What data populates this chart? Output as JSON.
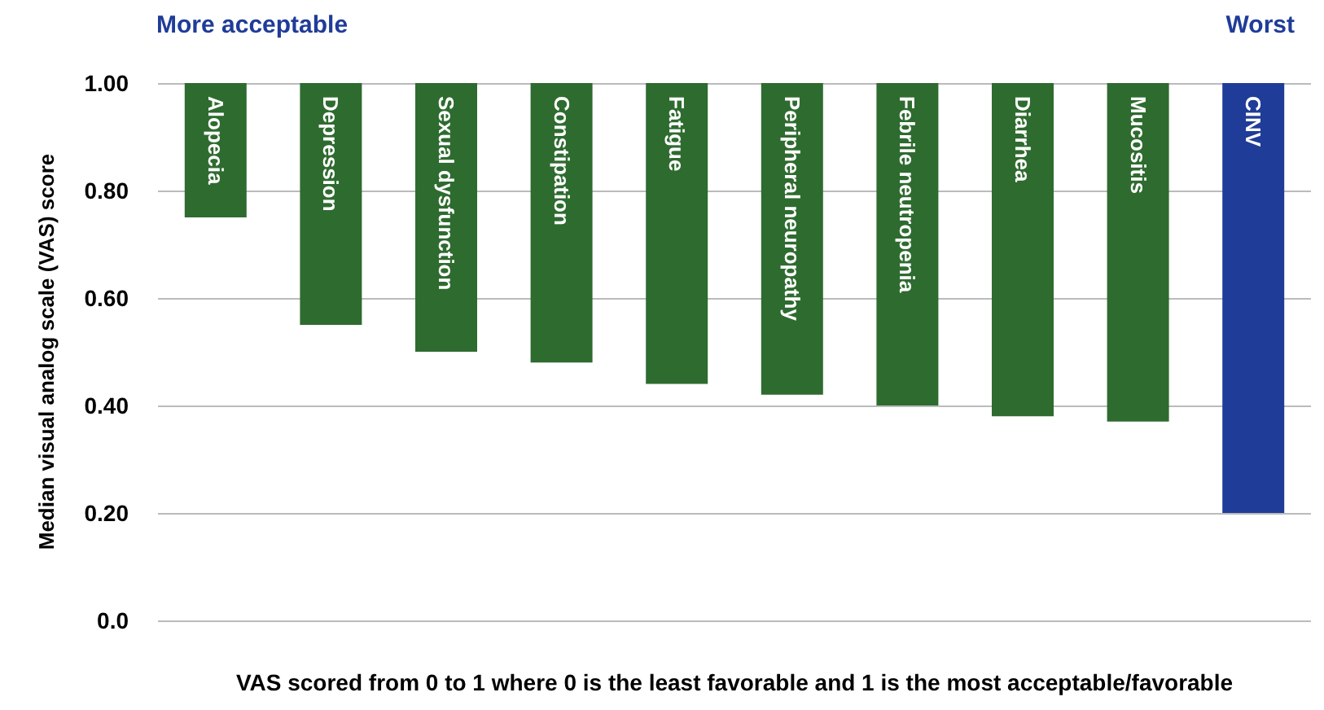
{
  "chart_data": {
    "type": "bar",
    "ylabel": "Median visual analog scale (VAS) score",
    "xlabel": "VAS scored from 0 to 1 where 0 is the least favorable and 1 is the most acceptable/favorable",
    "annotations": [
      "More acceptable",
      "Worst"
    ],
    "categories": [
      "Alopecia",
      "Depression",
      "Sexual dysfunction",
      "Constipation",
      "Fatigue",
      "Peripheral neuropathy",
      "Febrile neutropenia",
      "Diarrhea",
      "Mucositis",
      "CINV"
    ],
    "base": [
      0.75,
      0.55,
      0.5,
      0.48,
      0.44,
      0.42,
      0.4,
      0.38,
      0.37,
      0.2
    ],
    "values": [
      0.25,
      0.45,
      0.5,
      0.52,
      0.56,
      0.58,
      0.6,
      0.62,
      0.63,
      0.8
    ],
    "colors": [
      "#2e6b2f",
      "#2e6b2f",
      "#2e6b2f",
      "#2e6b2f",
      "#2e6b2f",
      "#2e6b2f",
      "#2e6b2f",
      "#2e6b2f",
      "#2e6b2f",
      "#1f3c98"
    ],
    "ylim": [
      0,
      1
    ],
    "yticks": [
      {
        "value": 0,
        "label": "0.0"
      },
      {
        "value": 0.2,
        "label": "0.20"
      },
      {
        "value": 0.4,
        "label": "0.40"
      },
      {
        "value": 0.6,
        "label": "0.60"
      },
      {
        "value": 0.8,
        "label": "0.80"
      },
      {
        "value": 1,
        "label": "1.00"
      }
    ],
    "grid": "y"
  }
}
